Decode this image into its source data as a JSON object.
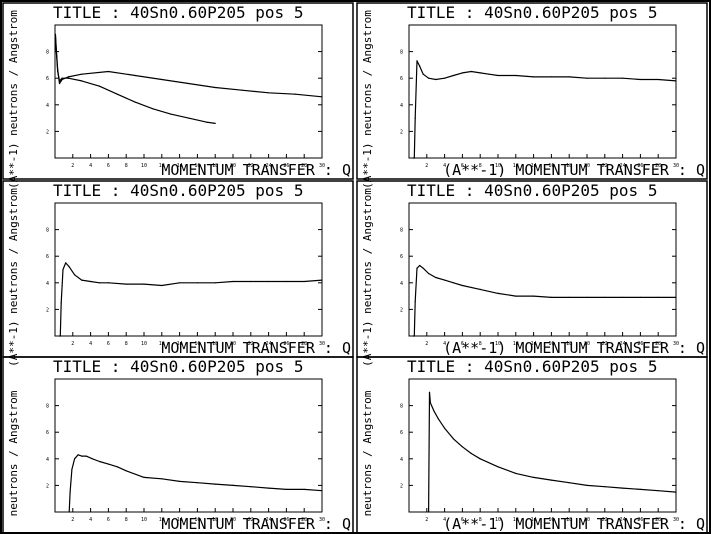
{
  "window": {
    "background": "#ffffff",
    "ink": "#000000"
  },
  "chart_data": [
    {
      "type": "line",
      "title": "TITLE : 40Sn0.60P205 pos 5",
      "xlabel": "MOMENTUM TRANSFER : Q",
      "ylabel": "(A**-1) neutrons / Angstrom",
      "xlim": [
        0,
        30
      ],
      "ylim": [
        0,
        10
      ],
      "xticks": [
        "2",
        "4",
        "6",
        "8",
        "10",
        "12",
        "14",
        "16",
        "18",
        "20",
        "22",
        "24",
        "26",
        "28",
        "30"
      ],
      "yticks": [
        "2",
        "4",
        "6",
        "8"
      ],
      "series": [
        {
          "x": [
            0.05,
            0.15,
            0.3,
            0.5,
            0.8,
            1.5,
            3,
            6,
            9,
            12,
            15,
            18,
            21,
            24,
            27,
            30
          ],
          "y": [
            9.3,
            8.2,
            6.6,
            5.6,
            5.9,
            6.1,
            6.3,
            6.5,
            6.2,
            5.9,
            5.6,
            5.3,
            5.1,
            4.9,
            4.8,
            4.6
          ]
        },
        {
          "x": [
            0.05,
            0.15,
            0.3,
            0.5,
            0.8,
            1.5,
            3,
            5,
            7,
            9,
            11,
            13,
            15,
            17,
            18
          ],
          "y": [
            9.3,
            8.0,
            6.5,
            5.8,
            6.0,
            6.0,
            5.8,
            5.4,
            4.8,
            4.2,
            3.7,
            3.3,
            3.0,
            2.7,
            2.6
          ]
        }
      ]
    },
    {
      "type": "line",
      "title": "TITLE : 40Sn0.60P205 pos 5",
      "xlabel": "(A**-1) MOMENTUM TRANSFER : Q",
      "ylabel": "(A**-1) neutrons / Angstrom",
      "xlim": [
        0,
        30
      ],
      "ylim": [
        0,
        10
      ],
      "xticks": [
        "2",
        "4",
        "6",
        "8",
        "10",
        "12",
        "14",
        "16",
        "18",
        "20",
        "22",
        "24",
        "26",
        "28",
        "30"
      ],
      "yticks": [
        "2",
        "4",
        "6",
        "8"
      ],
      "series": [
        {
          "x": [
            0.5,
            0.6,
            0.7,
            0.9,
            1.2,
            1.6,
            2.2,
            3,
            4,
            5,
            6,
            7,
            8,
            9,
            10,
            12,
            14,
            16,
            18,
            20,
            22,
            24,
            26,
            28,
            30
          ],
          "y": [
            0,
            0,
            3,
            7.3,
            6.9,
            6.3,
            6.0,
            5.9,
            6.0,
            6.2,
            6.4,
            6.5,
            6.4,
            6.3,
            6.2,
            6.2,
            6.1,
            6.1,
            6.1,
            6.0,
            6.0,
            6.0,
            5.9,
            5.9,
            5.8
          ]
        }
      ]
    },
    {
      "type": "line",
      "title": "TITLE : 40Sn0.60P205 pos 5",
      "xlabel": "MOMENTUM TRANSFER : Q",
      "ylabel": "(A**-1) neutrons / Angstrom",
      "xlim": [
        0,
        30
      ],
      "ylim": [
        0,
        10
      ],
      "xticks": [
        "2",
        "4",
        "6",
        "8",
        "10",
        "12",
        "14",
        "16",
        "18",
        "20",
        "22",
        "24",
        "26",
        "28",
        "30"
      ],
      "yticks": [
        "2",
        "4",
        "6",
        "8"
      ],
      "series": [
        {
          "x": [
            0.5,
            0.6,
            0.7,
            0.9,
            1.2,
            1.6,
            2.2,
            3,
            4,
            5,
            6,
            8,
            10,
            12,
            14,
            16,
            18,
            20,
            22,
            24,
            26,
            28,
            30
          ],
          "y": [
            0,
            0,
            2.5,
            5.0,
            5.5,
            5.2,
            4.6,
            4.2,
            4.1,
            4.0,
            4.0,
            3.9,
            3.9,
            3.8,
            4.0,
            4.0,
            4.0,
            4.1,
            4.1,
            4.1,
            4.1,
            4.1,
            4.2
          ]
        }
      ]
    },
    {
      "type": "line",
      "title": "TITLE : 40Sn0.60P205 pos 5",
      "xlabel": "(A**-1) MOMENTUM TRANSFER : Q",
      "ylabel": "(A**-1) neutrons / Angstrom",
      "xlim": [
        0,
        30
      ],
      "ylim": [
        0,
        10
      ],
      "xticks": [
        "2",
        "4",
        "6",
        "8",
        "10",
        "12",
        "14",
        "16",
        "18",
        "20",
        "22",
        "24",
        "26",
        "28",
        "30"
      ],
      "yticks": [
        "2",
        "4",
        "6",
        "8"
      ],
      "series": [
        {
          "x": [
            0.5,
            0.6,
            0.7,
            0.9,
            1.2,
            1.6,
            2.2,
            3,
            4,
            5,
            6,
            8,
            10,
            12,
            14,
            16,
            18,
            20,
            22,
            24,
            26,
            28,
            30
          ],
          "y": [
            0,
            0,
            2.6,
            5.1,
            5.3,
            5.1,
            4.7,
            4.4,
            4.2,
            4.0,
            3.8,
            3.5,
            3.2,
            3.0,
            3.0,
            2.9,
            2.9,
            2.9,
            2.9,
            2.9,
            2.9,
            2.9,
            2.9
          ]
        }
      ]
    },
    {
      "type": "line",
      "title": "TITLE : 40Sn0.60P205 pos 5",
      "xlabel": "MOMENTUM TRANSFER : Q",
      "ylabel": "neutrons / Angstrom",
      "xlim": [
        0,
        30
      ],
      "ylim": [
        0,
        10
      ],
      "xticks": [
        "2",
        "4",
        "6",
        "8",
        "10",
        "12",
        "14",
        "16",
        "18",
        "20",
        "22",
        "24",
        "26",
        "28",
        "30"
      ],
      "yticks": [
        "2",
        "4",
        "6",
        "8"
      ],
      "series": [
        {
          "x": [
            1.6,
            1.7,
            1.9,
            2.2,
            2.6,
            3.0,
            3.5,
            4.2,
            5,
            6,
            7,
            8,
            10,
            12,
            14,
            16,
            18,
            20,
            22,
            24,
            26,
            28,
            30
          ],
          "y": [
            0,
            1.5,
            3.2,
            4.0,
            4.3,
            4.2,
            4.2,
            4.0,
            3.8,
            3.6,
            3.4,
            3.1,
            2.6,
            2.5,
            2.3,
            2.2,
            2.1,
            2.0,
            1.9,
            1.8,
            1.7,
            1.7,
            1.6
          ]
        }
      ]
    },
    {
      "type": "line",
      "title": "TITLE : 40Sn0.60P205 pos 5",
      "xlabel": "(A**-1) MOMENTUM TRANSFER : Q",
      "ylabel": "neutrons / Angstrom",
      "xlim": [
        0,
        30
      ],
      "ylim": [
        0,
        10
      ],
      "xticks": [
        "2",
        "4",
        "6",
        "8",
        "10",
        "12",
        "14",
        "16",
        "18",
        "20",
        "22",
        "24",
        "26",
        "28",
        "30"
      ],
      "yticks": [
        "2",
        "4",
        "6",
        "8"
      ],
      "series": [
        {
          "x": [
            2.2,
            2.3,
            2.4,
            2.8,
            3.3,
            4,
            5,
            6,
            7,
            8,
            10,
            12,
            14,
            16,
            18,
            20,
            22,
            24,
            26,
            28,
            30
          ],
          "y": [
            0,
            9.0,
            8.2,
            7.6,
            7.0,
            6.3,
            5.5,
            4.9,
            4.4,
            4.0,
            3.4,
            2.9,
            2.6,
            2.4,
            2.2,
            2.0,
            1.9,
            1.8,
            1.7,
            1.6,
            1.5
          ]
        }
      ]
    }
  ]
}
